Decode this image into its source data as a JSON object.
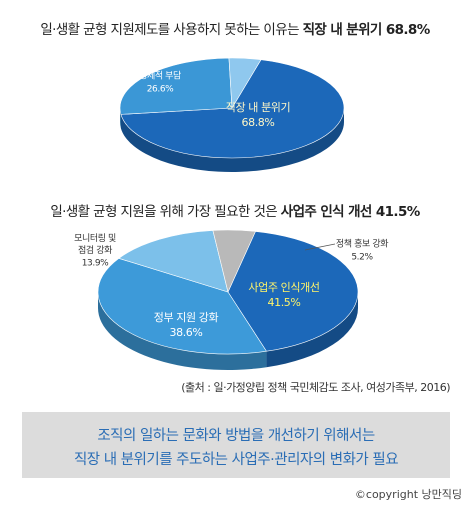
{
  "chart_data": [
    {
      "type": "pie",
      "title": "일·생활 균형 지원제도를 사용하지 못하는 이유는 ",
      "title_emphasis": "직장 내 분위기 68.8%",
      "categories": [
        "직장 내 분위기",
        "경제적 부담",
        null
      ],
      "values": [
        68.8,
        26.6,
        4.6
      ],
      "value_labels": [
        "68.8%",
        "26.6%",
        null
      ],
      "colors": [
        "#1c68b9",
        "#3b97d6",
        "#8fc8ee"
      ]
    },
    {
      "type": "pie",
      "title": "일·생활 균형 지원을 위해 가장 필요한 것은 ",
      "title_emphasis": "사업주 인식 개선 41.5%",
      "categories": [
        "사업주 인식개선",
        "정부 지원 강화",
        "모니터링 및 점검 강화",
        "정책 홍보 강화"
      ],
      "values": [
        41.5,
        38.6,
        13.9,
        5.2
      ],
      "value_labels": [
        "41.5%",
        "38.6%",
        "13.9%",
        "5.2%"
      ],
      "colors": [
        "#1c68b9",
        "#3d9ad9",
        "#7cc0ea",
        "#b9b9b9"
      ]
    }
  ],
  "source": "(출처 : 일·가정양립 정책 국민체감도 조사, 여성가족부, 2016)",
  "banner": [
    "조직의 일하는 문화와 방법을 개선하기 위해서는",
    "직장 내 분위기를 주도하는 사업주·관리자의 변화가 필요"
  ],
  "copyright": "©copyright 낭만직딩"
}
